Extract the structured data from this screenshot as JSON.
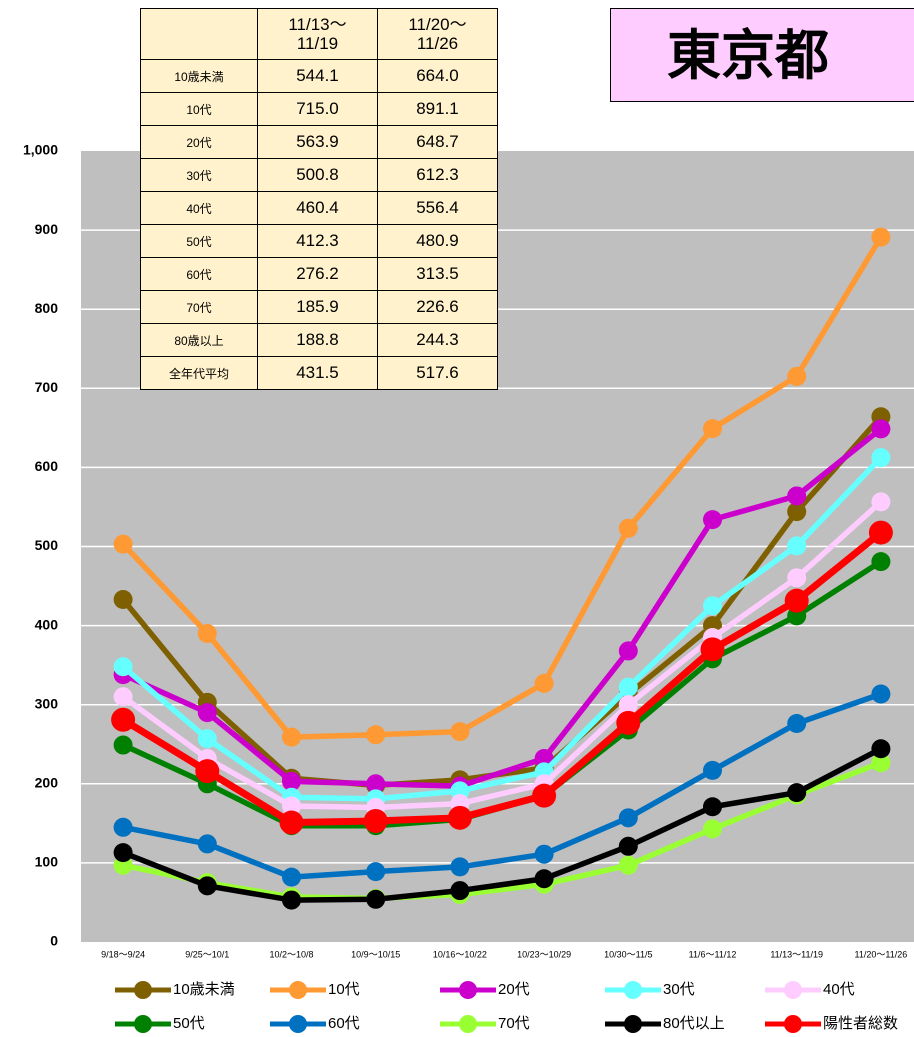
{
  "title": "東京都",
  "table": {
    "header": [
      "",
      "11/13～\n11/19",
      "11/20～\n11/26"
    ],
    "rows": [
      [
        "10歳未満",
        "544.1",
        "664.0"
      ],
      [
        "10代",
        "715.0",
        "891.1"
      ],
      [
        "20代",
        "563.9",
        "648.7"
      ],
      [
        "30代",
        "500.8",
        "612.3"
      ],
      [
        "40代",
        "460.4",
        "556.4"
      ],
      [
        "50代",
        "412.3",
        "480.9"
      ],
      [
        "60代",
        "276.2",
        "313.5"
      ],
      [
        "70代",
        "185.9",
        "226.6"
      ],
      [
        "80歳以上",
        "188.8",
        "244.3"
      ],
      [
        "全年代平均",
        "431.5",
        "517.6"
      ]
    ]
  },
  "chart_data": {
    "type": "line",
    "categories": [
      "9/18～9/24",
      "9/25～10/1",
      "10/2～10/8",
      "10/9～10/15",
      "10/16～10/22",
      "10/23～10/29",
      "10/30～11/5",
      "11/6～11/12",
      "11/13～11/19",
      "11/20～11/26"
    ],
    "ylim": [
      0,
      1000
    ],
    "yticks": [
      0,
      100,
      200,
      300,
      400,
      500,
      600,
      700,
      800,
      900,
      {
        "value": 1000,
        "label": "1,000"
      }
    ],
    "grid": true,
    "series": [
      {
        "name": "10歳未満",
        "color": "#7f6000",
        "values": [
          433,
          303,
          207,
          198,
          205,
          220,
          313,
          400,
          544.1,
          664.0
        ]
      },
      {
        "name": "10代",
        "color": "#ff9933",
        "values": [
          503,
          390,
          259,
          262,
          266,
          327,
          523,
          649,
          715.0,
          891.1
        ]
      },
      {
        "name": "20代",
        "color": "#cc00cc",
        "values": [
          338,
          290,
          203,
          200,
          197,
          232,
          368,
          534,
          563.9,
          648.7
        ]
      },
      {
        "name": "30代",
        "color": "#66ffff",
        "values": [
          348,
          257,
          183,
          181,
          191,
          215,
          322,
          425,
          500.8,
          612.3
        ]
      },
      {
        "name": "40代",
        "color": "#ffccff",
        "values": [
          310,
          232,
          172,
          170,
          175,
          200,
          300,
          385,
          460.4,
          556.4
        ]
      },
      {
        "name": "50代",
        "color": "#008000",
        "values": [
          249,
          200,
          147,
          147,
          155,
          185,
          268,
          358,
          412.3,
          480.9
        ]
      },
      {
        "name": "60代",
        "color": "#0070c0",
        "values": [
          145,
          124,
          82,
          89,
          95,
          111,
          157,
          217,
          276.2,
          313.5
        ]
      },
      {
        "name": "70代",
        "color": "#99ff33",
        "values": [
          97,
          75,
          57,
          55,
          60,
          73,
          97,
          143,
          185.9,
          226.6
        ]
      },
      {
        "name": "80代以上",
        "color": "#000000",
        "values": [
          113,
          71,
          53,
          54,
          65,
          80,
          121,
          171,
          188.8,
          244.3
        ]
      },
      {
        "name": "陽性者総数",
        "color": "#ff0000",
        "values": [
          281,
          216,
          151,
          153,
          157,
          185,
          277,
          370,
          431.5,
          517.6
        ]
      }
    ]
  }
}
